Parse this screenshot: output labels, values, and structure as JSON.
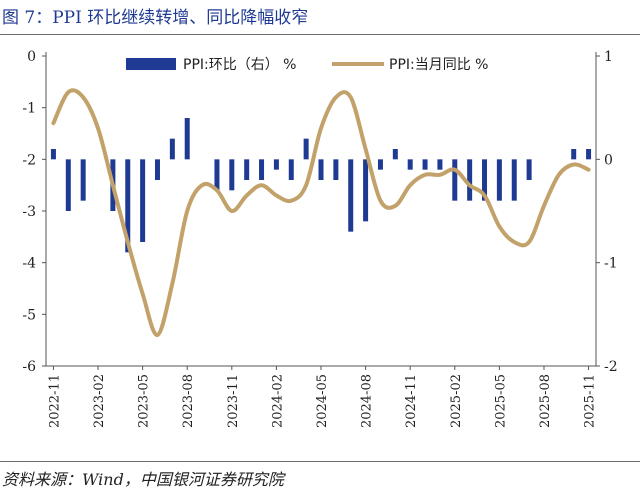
{
  "figure": {
    "title": "图 7：PPI 环比继续转增、同比降幅收窄",
    "source": "资料来源：Wind，中国银河证券研究院"
  },
  "chart_data": {
    "type": "bar+line",
    "x": [
      "2022-11",
      "2022-12",
      "2023-01",
      "2023-02",
      "2023-03",
      "2023-04",
      "2023-05",
      "2023-06",
      "2023-07",
      "2023-08",
      "2023-09",
      "2023-10",
      "2023-11",
      "2023-12",
      "2024-01",
      "2024-02",
      "2024-03",
      "2024-04",
      "2024-05",
      "2024-06",
      "2024-07",
      "2024-08",
      "2024-09",
      "2024-10",
      "2024-11",
      "2024-12",
      "2025-01",
      "2025-02",
      "2025-03",
      "2025-04",
      "2025-05",
      "2025-06",
      "2025-07",
      "2025-08",
      "2025-09",
      "2025-10",
      "2025-11"
    ],
    "x_tick_labels": [
      "2022-11",
      "2023-02",
      "2023-05",
      "2023-08",
      "2023-11",
      "2024-02",
      "2024-05",
      "2024-08",
      "2024-11",
      "2025-02",
      "2025-05",
      "2025-08",
      "2025-11"
    ],
    "series": [
      {
        "name": "PPI:环比（右） %",
        "type": "bar",
        "axis": "right",
        "color": "#1f3a93",
        "values": [
          0.1,
          -0.5,
          -0.4,
          0,
          -0.5,
          -0.9,
          -0.8,
          -0.2,
          0.2,
          0.4,
          0,
          -0.3,
          -0.3,
          -0.2,
          -0.2,
          -0.1,
          -0.2,
          0.2,
          -0.2,
          -0.2,
          -0.7,
          -0.6,
          -0.1,
          0.1,
          -0.1,
          -0.1,
          -0.1,
          -0.4,
          -0.4,
          -0.4,
          -0.4,
          -0.4,
          -0.2,
          0,
          0,
          0.1,
          0.1
        ]
      },
      {
        "name": "PPI:当月同比 %",
        "type": "line",
        "axis": "left",
        "color": "#c2a26a",
        "values": [
          -1.3,
          -0.7,
          -0.8,
          -1.4,
          -2.5,
          -3.6,
          -4.6,
          -5.4,
          -4.4,
          -3.0,
          -2.5,
          -2.6,
          -3.0,
          -2.7,
          -2.5,
          -2.7,
          -2.8,
          -2.5,
          -1.4,
          -0.8,
          -0.8,
          -1.8,
          -2.8,
          -2.9,
          -2.5,
          -2.3,
          -2.3,
          -2.2,
          -2.5,
          -2.7,
          -3.3,
          -3.6,
          -3.6,
          -2.9,
          -2.3,
          -2.1,
          -2.2
        ]
      }
    ],
    "y_left": {
      "min": -6,
      "max": 0,
      "ticks": [
        0,
        -1,
        -2,
        -3,
        -4,
        -5,
        -6
      ]
    },
    "y_right": {
      "min": -2,
      "max": 1,
      "ticks": [
        1,
        0,
        -1,
        -2
      ]
    },
    "legend": {
      "placement": "top"
    },
    "grid": false
  }
}
